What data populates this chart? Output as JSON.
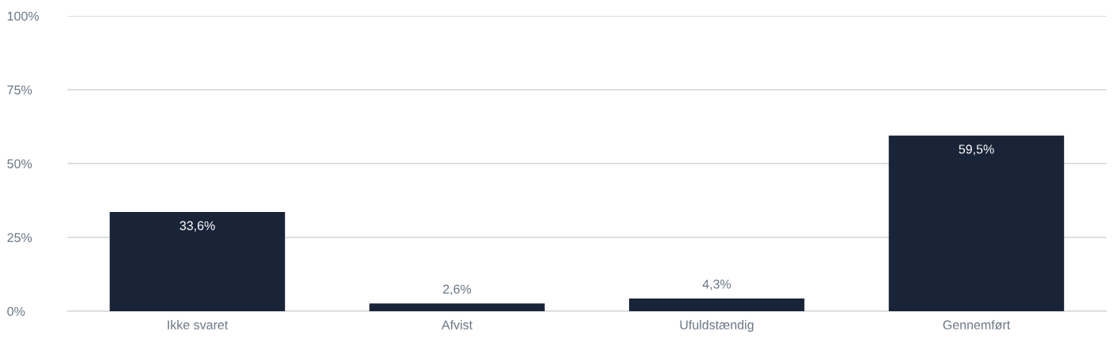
{
  "chart_data": {
    "type": "bar",
    "categories": [
      "Ikke svaret",
      "Afvist",
      "Ufuldstændig",
      "Gennemført"
    ],
    "values": [
      33.6,
      2.6,
      4.3,
      59.5
    ],
    "value_labels": [
      "33,6%",
      "2,6%",
      "4,3%",
      "59,5%"
    ],
    "color": "#1a2438",
    "ylim": [
      0,
      100
    ],
    "yticks": [
      {
        "value": 0,
        "label": "0%"
      },
      {
        "value": 25,
        "label": "25%"
      },
      {
        "value": 50,
        "label": "50%"
      },
      {
        "value": 75,
        "label": "75%"
      },
      {
        "value": 100,
        "label": "100%"
      }
    ],
    "grid": "y",
    "legend": false
  }
}
